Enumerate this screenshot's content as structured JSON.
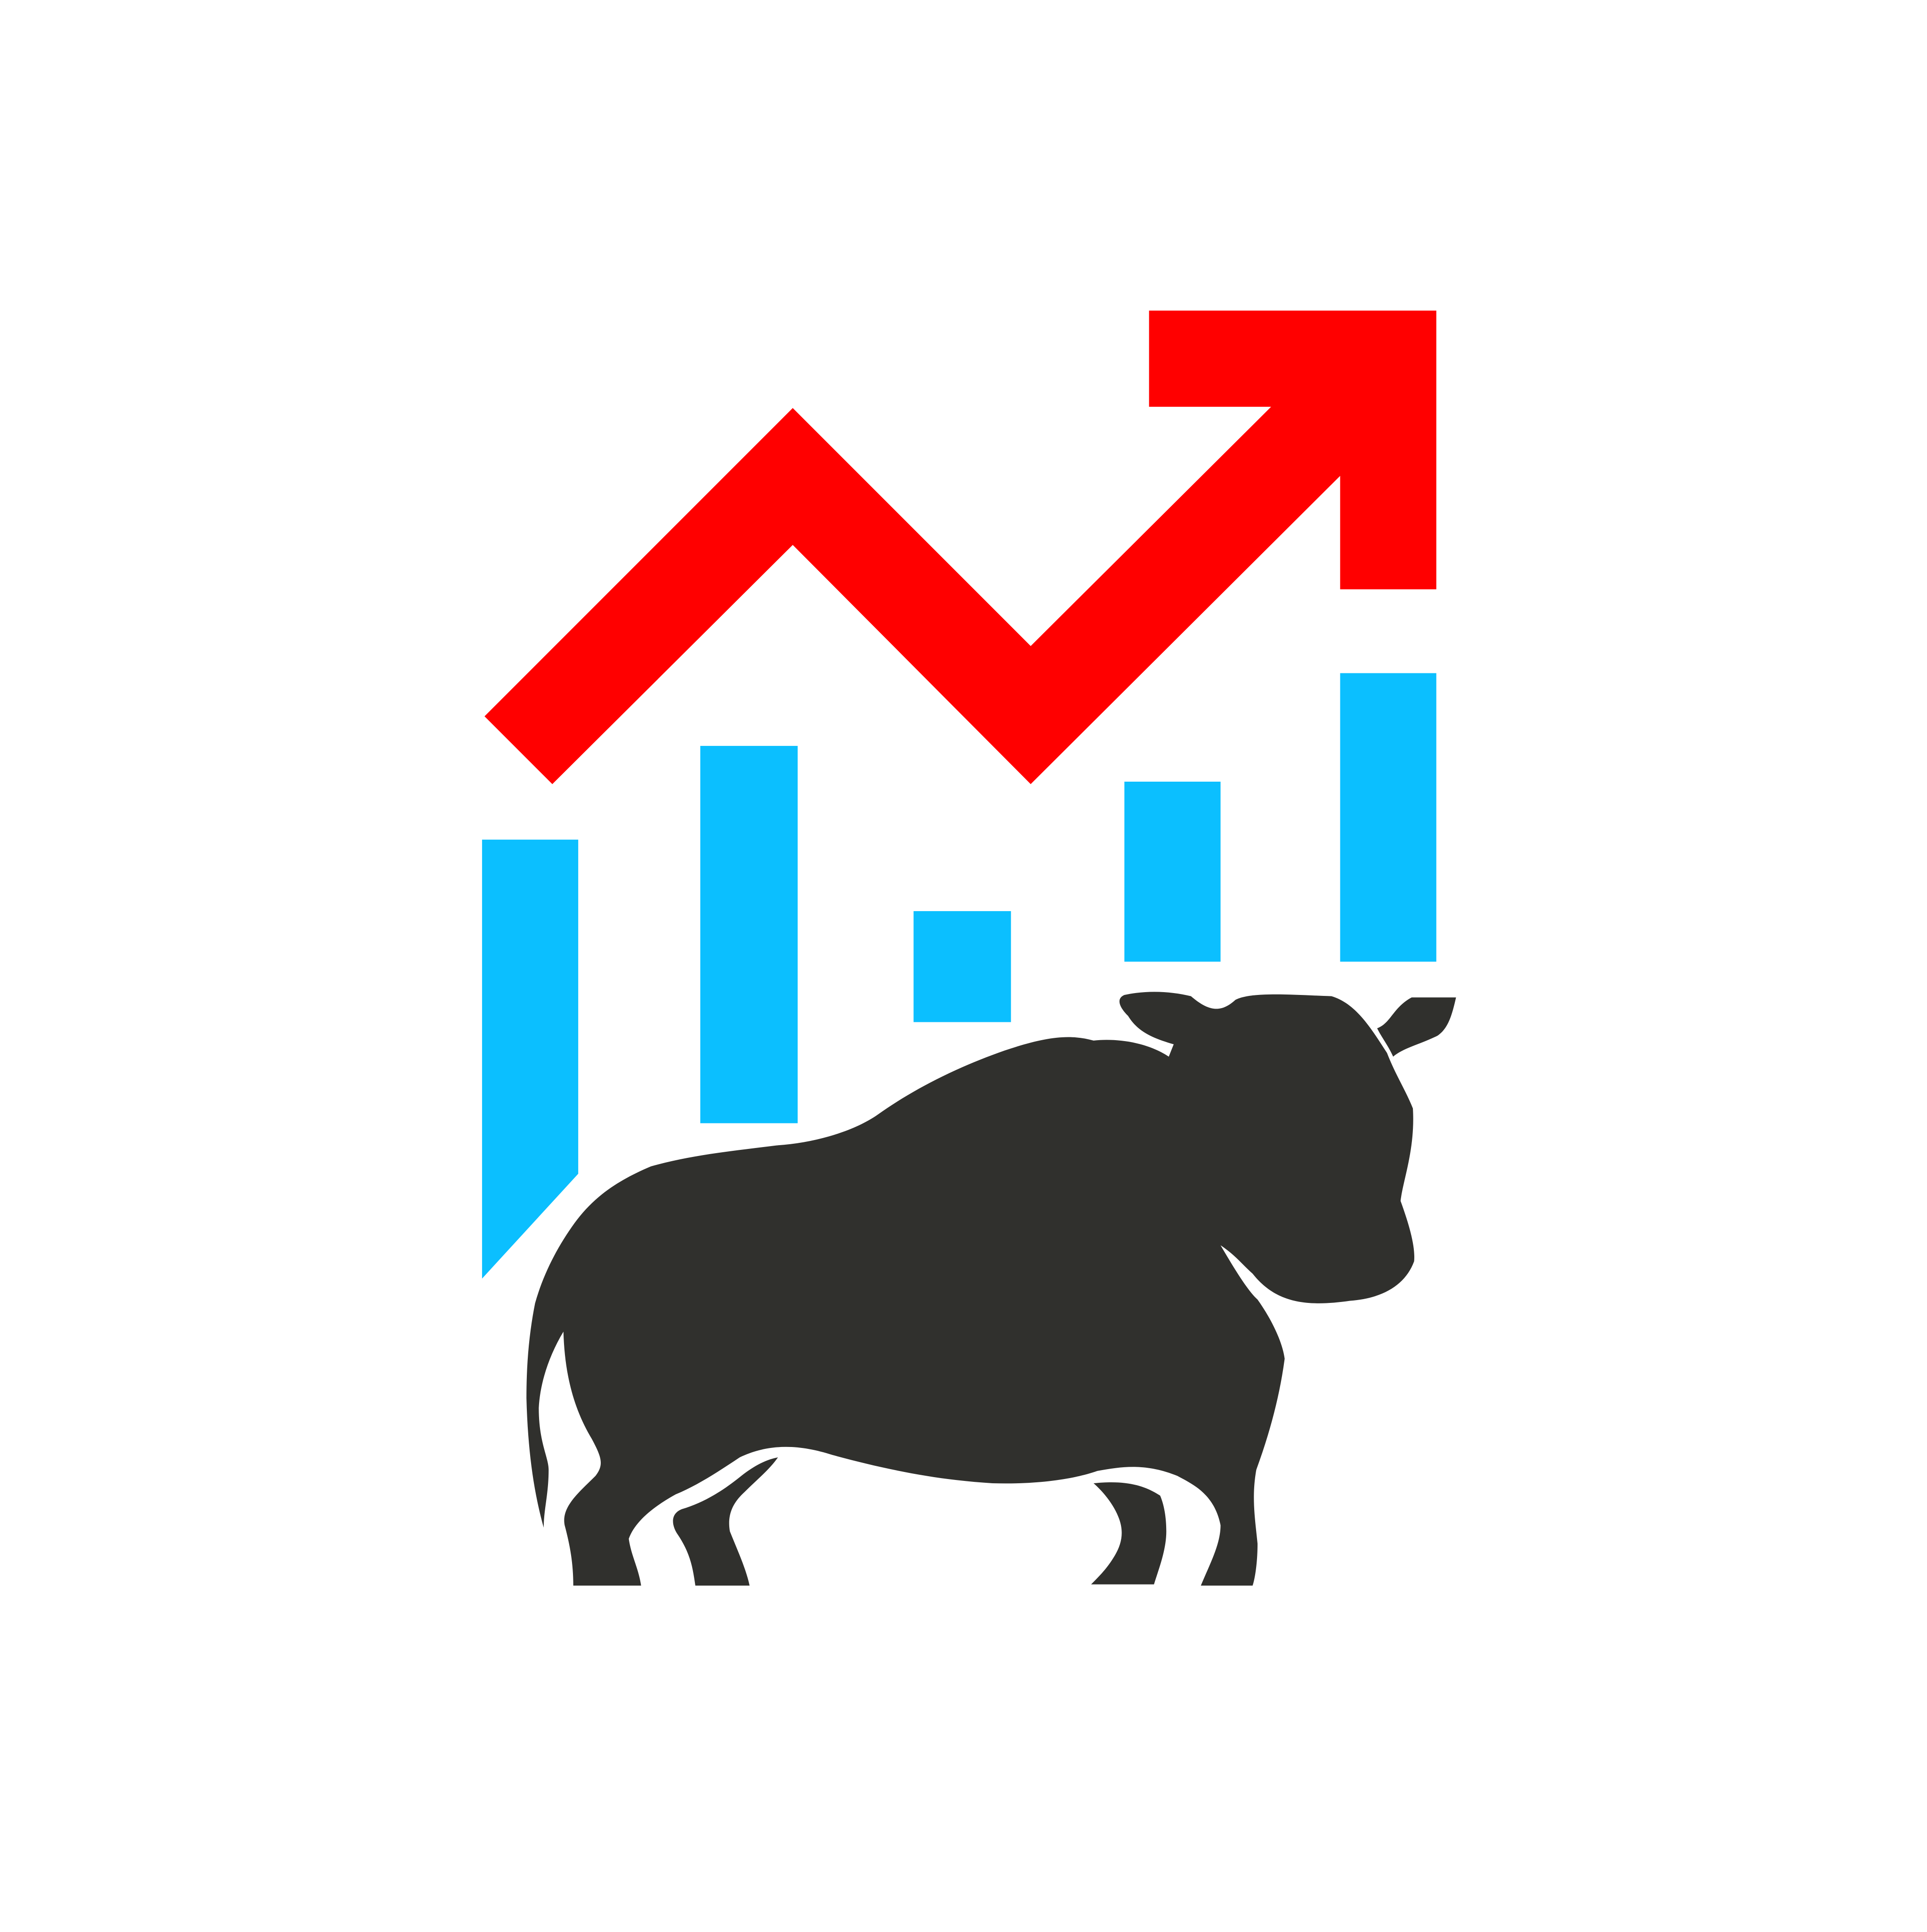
{
  "logo": {
    "colors": {
      "background": "#ffffff",
      "arrow": "#ff0000",
      "bars": "#0bbfff",
      "bull": "#30302d"
    },
    "icons": {
      "arrow": "trend-up-arrow-icon",
      "bull": "bull-icon"
    },
    "bar_count": 5
  }
}
